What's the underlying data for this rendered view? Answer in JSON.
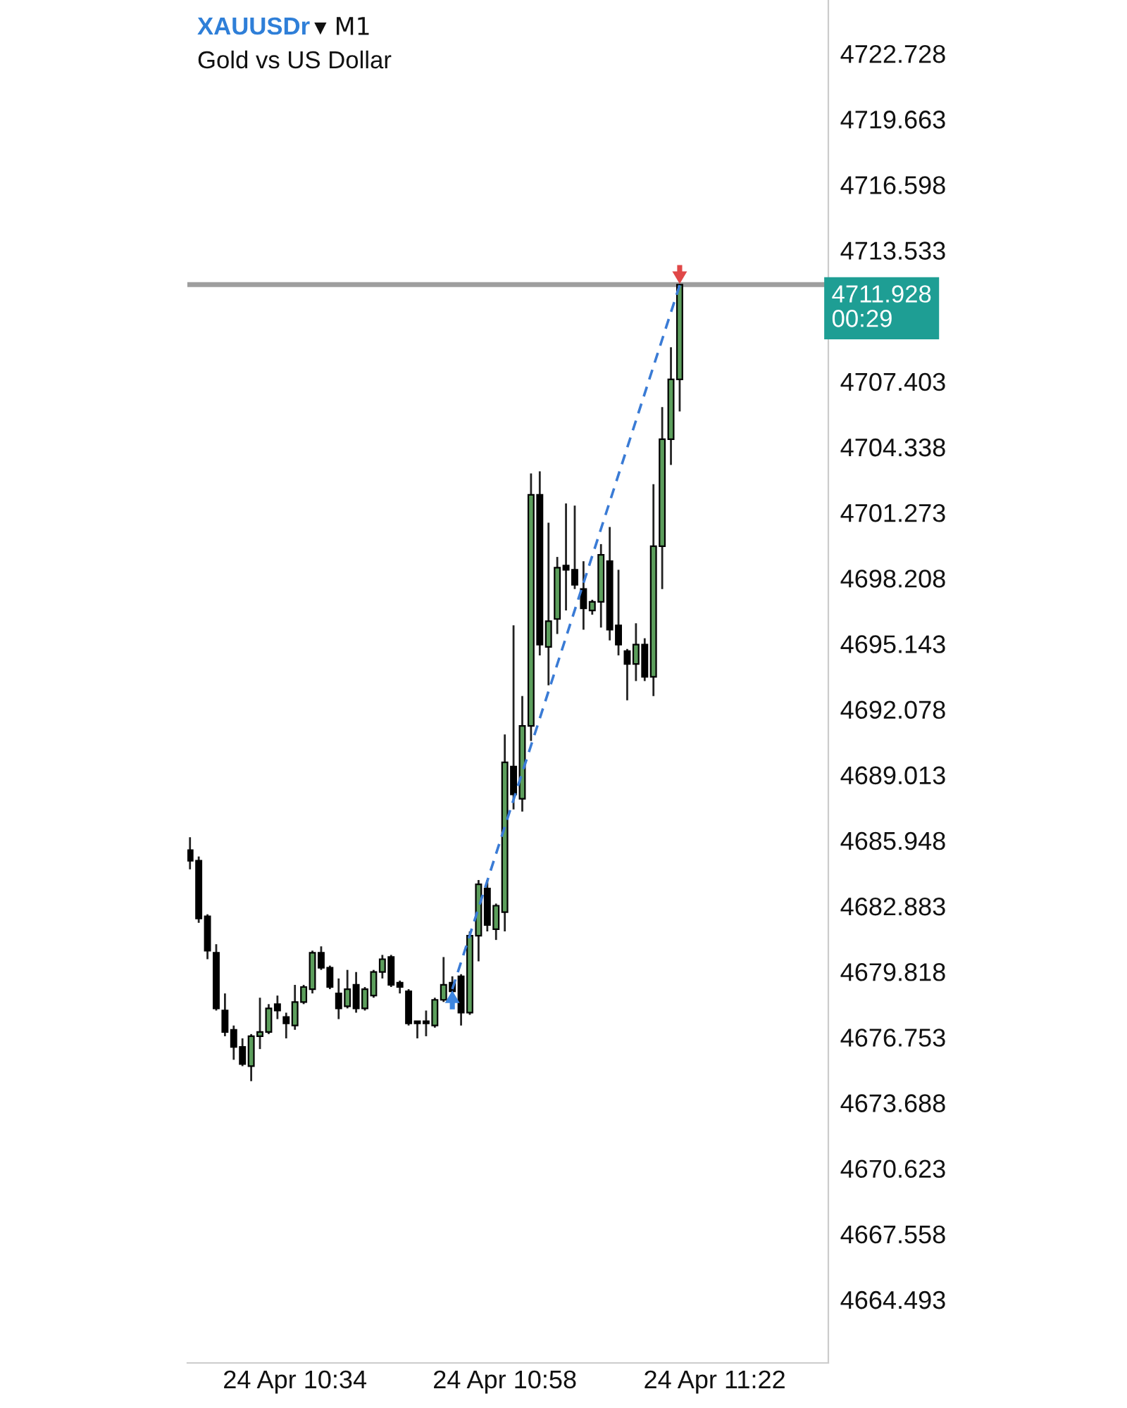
{
  "chart_data": {
    "type": "candlestick",
    "title": "XAUUSDr ▾ M1",
    "subtitle": "Gold vs US Dollar",
    "categories": [
      null,
      null,
      null,
      null,
      null,
      null,
      null,
      null,
      null,
      null,
      null,
      null,
      "24 Apr 10:34",
      null,
      null,
      null,
      null,
      null,
      null,
      null,
      null,
      null,
      null,
      null,
      null,
      null,
      null,
      null,
      null,
      null,
      null,
      null,
      null,
      null,
      null,
      null,
      "24 Apr 10:58",
      null,
      null,
      null,
      null,
      null,
      null,
      null,
      null,
      null,
      null,
      null,
      null,
      null,
      null,
      null,
      null,
      null,
      null,
      null,
      null,
      null,
      null,
      null,
      "24 Apr 11:22"
    ],
    "ylim": [
      4661.53,
      4725.23
    ],
    "yticks": [
      4664.493,
      4667.558,
      4670.623,
      4673.688,
      4676.753,
      4679.818,
      4682.883,
      4685.948,
      4689.013,
      4692.078,
      4695.143,
      4698.208,
      4701.273,
      4704.338,
      4707.403,
      4713.533,
      4716.598,
      4719.663,
      4722.728
    ],
    "grid": false,
    "legend": false,
    "series": [
      {
        "colors": [
          "#000000",
          "#000000",
          "#000000",
          "#000000",
          "#000000",
          "#000000",
          "#000000",
          "#5c9e5c",
          "#5c9e5c",
          "#5c9e5c",
          "#000000",
          "#000000",
          "#5c9e5c",
          "#5c9e5c",
          "#5c9e5c",
          "#000000",
          "#000000",
          "#000000",
          "#5c9e5c",
          "#000000",
          "#5c9e5c",
          "#5c9e5c",
          "#5c9e5c",
          "#000000",
          "#000000",
          "#000000",
          "#000000",
          "#000000",
          "#5c9e5c",
          "#5c9e5c",
          "#000000",
          "#000000",
          "#5c9e5c",
          "#5c9e5c",
          "#000000",
          "#5c9e5c",
          "#5c9e5c",
          "#000000",
          "#5c9e5c",
          "#5c9e5c",
          "#000000",
          "#5c9e5c",
          "#5c9e5c",
          "#000000",
          "#000000",
          "#000000",
          "#5c9e5c",
          "#5c9e5c",
          "#000000",
          "#000000",
          "#000000",
          "#5c9e5c",
          "#000000",
          "#5c9e5c",
          "#5c9e5c",
          "#5c9e5c",
          "#5c9e5c",
          null,
          null,
          null,
          null
        ],
        "ohlc": [
          [
            4685.5,
            4686.1,
            4684.6,
            4685.0
          ],
          [
            4685.0,
            4685.2,
            4682.1,
            4682.3
          ],
          [
            4682.4,
            4682.5,
            4680.4,
            4680.8
          ],
          [
            4680.7,
            4681.1,
            4678.0,
            4678.1
          ],
          [
            4678.0,
            4678.8,
            4676.8,
            4677.0
          ],
          [
            4677.1,
            4677.3,
            4675.7,
            4676.3
          ],
          [
            4676.3,
            4676.7,
            4675.4,
            4675.5
          ],
          [
            4675.4,
            4676.9,
            4674.7,
            4676.8
          ],
          [
            4676.8,
            4678.6,
            4676.2,
            4677.0
          ],
          [
            4677.0,
            4678.3,
            4676.9,
            4678.1
          ],
          [
            4678.3,
            4678.7,
            4677.6,
            4678.0
          ],
          [
            4677.7,
            4677.9,
            4676.7,
            4677.4
          ],
          [
            4677.3,
            4679.2,
            4677.1,
            4678.4
          ],
          [
            4678.4,
            4679.2,
            4678.3,
            4679.1
          ],
          [
            4679.0,
            4680.8,
            4678.8,
            4680.7
          ],
          [
            4680.7,
            4681.0,
            4679.9,
            4680.0
          ],
          [
            4680.0,
            4680.1,
            4679.0,
            4679.1
          ],
          [
            4678.8,
            4679.5,
            4677.6,
            4678.1
          ],
          [
            4678.2,
            4679.9,
            4678.1,
            4679.0
          ],
          [
            4679.2,
            4679.8,
            4677.9,
            4678.1
          ],
          [
            4678.1,
            4679.1,
            4678.0,
            4679.0
          ],
          [
            4678.7,
            4679.9,
            4678.6,
            4679.8
          ],
          [
            4679.8,
            4680.6,
            4679.5,
            4680.4
          ],
          [
            4680.5,
            4680.6,
            4679.1,
            4679.2
          ],
          [
            4679.3,
            4679.4,
            4678.8,
            4679.1
          ],
          [
            4678.9,
            4679.0,
            4677.3,
            4677.4
          ],
          [
            4677.5,
            4677.5,
            4676.7,
            4677.4
          ],
          [
            4677.5,
            4678.0,
            4676.8,
            4677.4
          ],
          [
            4677.3,
            4678.6,
            4677.2,
            4678.5
          ],
          [
            4678.5,
            4680.5,
            4678.4,
            4679.2
          ],
          [
            4679.3,
            4679.6,
            4678.8,
            4678.9
          ],
          [
            4679.6,
            4679.7,
            4677.3,
            4677.9
          ],
          [
            4677.9,
            4681.7,
            4677.8,
            4681.5
          ],
          [
            4681.5,
            4684.1,
            4680.3,
            4683.9
          ],
          [
            4683.7,
            4684.1,
            4681.7,
            4682.0
          ],
          [
            4681.8,
            4683.0,
            4681.3,
            4682.9
          ],
          [
            4682.6,
            4690.9,
            4681.7,
            4689.6
          ],
          [
            4689.4,
            4696.0,
            4687.4,
            4688.1
          ],
          [
            4687.9,
            4692.7,
            4687.3,
            4691.3
          ],
          [
            4691.3,
            4703.1,
            4690.6,
            4702.1
          ],
          [
            4702.1,
            4703.2,
            4694.6,
            4695.1
          ],
          [
            4695.0,
            4700.8,
            4693.2,
            4696.2
          ],
          [
            4696.3,
            4699.2,
            4695.6,
            4698.7
          ],
          [
            4698.8,
            4701.7,
            4696.7,
            4698.6
          ],
          [
            4698.6,
            4701.6,
            4697.7,
            4697.9
          ],
          [
            4697.7,
            4699.0,
            4695.8,
            4696.8
          ],
          [
            4696.7,
            4697.2,
            4696.5,
            4697.1
          ],
          [
            4697.1,
            4699.8,
            4695.9,
            4699.3
          ],
          [
            4699.0,
            4700.6,
            4695.3,
            4695.8
          ],
          [
            4696.0,
            4698.6,
            4694.6,
            4695.1
          ],
          [
            4694.8,
            4694.9,
            4692.5,
            4694.2
          ],
          [
            4694.2,
            4696.1,
            4693.4,
            4695.1
          ],
          [
            4695.1,
            4695.4,
            4693.4,
            4693.6
          ],
          [
            4693.6,
            4702.6,
            4692.7,
            4699.7
          ],
          [
            4699.7,
            4706.2,
            4697.7,
            4704.7
          ],
          [
            4704.7,
            4709.0,
            4703.5,
            4707.5
          ],
          [
            4707.5,
            4711.928,
            4706.0,
            4711.928
          ],
          null,
          null,
          null,
          null
        ]
      },
      {
        "type": "line",
        "color": "#3a7bd5",
        "line_style": "dashed",
        "values": [
          null,
          null,
          null,
          null,
          null,
          null,
          null,
          null,
          null,
          null,
          null,
          null,
          null,
          null,
          null,
          null,
          null,
          null,
          null,
          null,
          null,
          null,
          null,
          null,
          null,
          null,
          null,
          null,
          null,
          null,
          4679.0,
          null,
          null,
          null,
          null,
          null,
          null,
          null,
          null,
          null,
          null,
          null,
          null,
          null,
          null,
          null,
          null,
          null,
          null,
          null,
          null,
          null,
          null,
          null,
          null,
          null,
          4711.9,
          null,
          null,
          null,
          null
        ]
      }
    ],
    "ref_lines": [
      {
        "axis": "y",
        "value": 4711.928,
        "label": "4711.928",
        "color": "#9e9e9e"
      }
    ],
    "annotations": [
      "00:29"
    ]
  }
}
